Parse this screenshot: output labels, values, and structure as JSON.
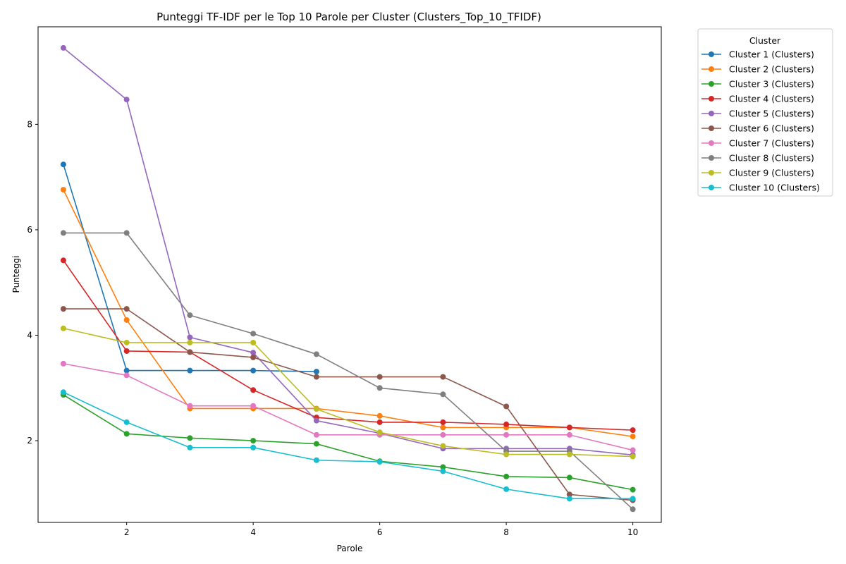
{
  "chart_data": {
    "type": "line",
    "title": "Punteggi TF-IDF per le Top 10 Parole per Cluster (Clusters_Top_10_TFIDF)",
    "xlabel": "Parole",
    "ylabel": "Punteggi",
    "xlim": [
      0.6,
      10.45
    ],
    "ylim": [
      0.45,
      9.85
    ],
    "xticks": [
      2,
      4,
      6,
      8,
      10
    ],
    "yticks": [
      2,
      4,
      6,
      8
    ],
    "grid": false,
    "legend": {
      "title": "Cluster",
      "placement": "outside-top-right"
    },
    "series": [
      {
        "name": "Cluster 1 (Clusters)",
        "color": "#1f77b4",
        "x": [
          1,
          2,
          3,
          4,
          5
        ],
        "y": [
          7.24,
          3.33,
          3.33,
          3.33,
          3.31
        ]
      },
      {
        "name": "Cluster 2 (Clusters)",
        "color": "#ff7f0e",
        "x": [
          1,
          2,
          3,
          4,
          5,
          6,
          7,
          8,
          9,
          10
        ],
        "y": [
          6.76,
          4.29,
          2.61,
          2.61,
          2.61,
          2.47,
          2.25,
          2.25,
          2.25,
          2.08
        ]
      },
      {
        "name": "Cluster 3 (Clusters)",
        "color": "#2ca02c",
        "x": [
          1,
          2,
          3,
          4,
          5,
          6,
          7,
          8,
          9,
          10
        ],
        "y": [
          2.87,
          2.13,
          2.05,
          2.0,
          1.94,
          1.61,
          1.5,
          1.32,
          1.3,
          1.07
        ]
      },
      {
        "name": "Cluster 4 (Clusters)",
        "color": "#d62728",
        "x": [
          1,
          2,
          3,
          4,
          5,
          6,
          7,
          8,
          9,
          10
        ],
        "y": [
          5.42,
          3.7,
          3.68,
          2.96,
          2.44,
          2.35,
          2.35,
          2.31,
          2.25,
          2.2
        ]
      },
      {
        "name": "Cluster 5 (Clusters)",
        "color": "#9467bd",
        "x": [
          1,
          2,
          3,
          4,
          5,
          6,
          7,
          8,
          9,
          10
        ],
        "y": [
          9.45,
          8.47,
          3.96,
          3.67,
          2.38,
          2.14,
          1.85,
          1.85,
          1.85,
          1.73
        ]
      },
      {
        "name": "Cluster 6 (Clusters)",
        "color": "#8c564b",
        "x": [
          1,
          2,
          3,
          4,
          5,
          6,
          7,
          8,
          9,
          10
        ],
        "y": [
          4.5,
          4.5,
          3.68,
          3.58,
          3.21,
          3.21,
          3.21,
          2.65,
          0.98,
          0.87
        ]
      },
      {
        "name": "Cluster 7 (Clusters)",
        "color": "#e377c2",
        "x": [
          1,
          2,
          3,
          4,
          5,
          6,
          7,
          8,
          9,
          10
        ],
        "y": [
          3.46,
          3.24,
          2.66,
          2.66,
          2.11,
          2.11,
          2.11,
          2.11,
          2.11,
          1.82
        ]
      },
      {
        "name": "Cluster 8 (Clusters)",
        "color": "#7f7f7f",
        "x": [
          1,
          2,
          3,
          4,
          5,
          6,
          7,
          8,
          9,
          10
        ],
        "y": [
          5.94,
          5.94,
          4.38,
          4.03,
          3.64,
          3.0,
          2.88,
          1.8,
          1.8,
          0.7
        ]
      },
      {
        "name": "Cluster 9 (Clusters)",
        "color": "#bcbd22",
        "x": [
          1,
          2,
          3,
          4,
          5,
          6,
          7,
          8,
          9,
          10
        ],
        "y": [
          4.13,
          3.86,
          3.86,
          3.86,
          2.6,
          2.16,
          1.9,
          1.74,
          1.74,
          1.7
        ]
      },
      {
        "name": "Cluster 10 (Clusters)",
        "color": "#17becf",
        "x": [
          1,
          2,
          3,
          4,
          5,
          6,
          7,
          8,
          9,
          10
        ],
        "y": [
          2.92,
          2.35,
          1.87,
          1.87,
          1.63,
          1.6,
          1.42,
          1.08,
          0.9,
          0.9
        ]
      }
    ]
  }
}
